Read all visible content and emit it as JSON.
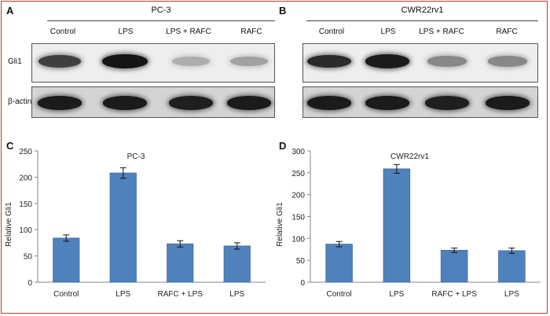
{
  "western_blots": [
    {
      "panel": "A",
      "title": "PC-3",
      "lanes": [
        "Control",
        "LPS",
        "LPS + RAFC",
        "RAFC"
      ],
      "rows": [
        {
          "label": "Gli1",
          "intensities": [
            0.75,
            0.95,
            0.22,
            0.28
          ]
        },
        {
          "label": "β-actin",
          "intensities": [
            0.92,
            0.92,
            0.9,
            0.92
          ]
        }
      ]
    },
    {
      "panel": "B",
      "title": "CWR22rv1",
      "lanes": [
        "Control",
        "LPS",
        "LPS + RAFC",
        "RAFC"
      ],
      "rows": [
        {
          "label": "",
          "intensities": [
            0.85,
            0.92,
            0.4,
            0.4
          ]
        },
        {
          "label": "",
          "intensities": [
            0.92,
            0.92,
            0.9,
            0.92
          ]
        }
      ]
    }
  ],
  "chart_data": [
    {
      "panel": "C",
      "type": "bar",
      "title": "PC-3",
      "ylabel": "Relative Gli1",
      "xlabel": "",
      "categories": [
        "Control",
        "LPS",
        "RAFC + LPS",
        "LPS"
      ],
      "values": [
        84,
        208,
        73,
        69
      ],
      "errors": [
        6,
        10,
        6,
        6
      ],
      "ylim": [
        0,
        250
      ],
      "yticks": [
        0,
        50,
        100,
        150,
        200,
        250
      ],
      "ytick_labels": [
        "0",
        "50",
        "100",
        "150",
        "200",
        "250"
      ],
      "color": "#4f81bd",
      "grid": false
    },
    {
      "panel": "D",
      "type": "bar",
      "title": "CWR22rv1",
      "ylabel": "Relative Gli1",
      "xlabel": "",
      "categories": [
        "Control",
        "LPS",
        "RAFC + LPS",
        "LPS"
      ],
      "values": [
        87,
        259,
        73,
        72
      ],
      "errors": [
        6,
        10,
        5,
        6
      ],
      "ylim": [
        0,
        300
      ],
      "yticks": [
        0,
        50,
        100,
        150,
        200,
        250,
        300
      ],
      "ytick_labels": [
        "0",
        "50",
        "100",
        "150",
        "200",
        "250",
        "300"
      ],
      "color": "#4f81bd",
      "grid": false
    }
  ]
}
